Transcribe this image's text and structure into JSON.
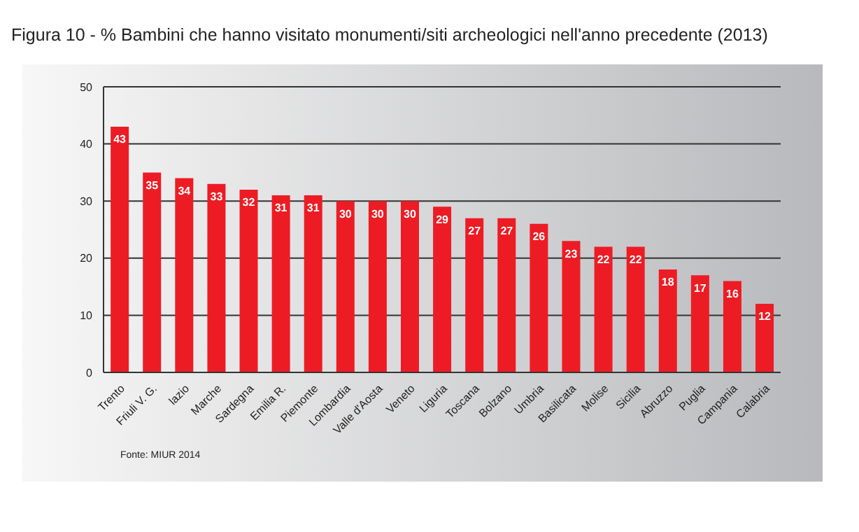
{
  "chart_data": {
    "type": "bar",
    "title": "Figura 10 - % Bambini che hanno visitato monumenti/siti archeologici nell'anno precedente (2013)",
    "categories": [
      "Trento",
      "Friuli V. G.",
      "lazio",
      "Marche",
      "Sardegna",
      "Emilia R.",
      "Piemonte",
      "Lombardia",
      "Valle d'Aosta",
      "Veneto",
      "Liguria",
      "Toscana",
      "Bolzano",
      "Umbria",
      "Basilicata",
      "Molise",
      "Sicilia",
      "Abruzzo",
      "Puglia",
      "Campania",
      "Calabria"
    ],
    "values": [
      43,
      35,
      34,
      33,
      32,
      31,
      31,
      30,
      30,
      30,
      29,
      27,
      27,
      26,
      23,
      22,
      22,
      18,
      17,
      16,
      12
    ],
    "color": "#ed1c24",
    "ylim": [
      0,
      50
    ],
    "yticks": [
      0,
      10,
      20,
      30,
      40,
      50
    ],
    "grid": "y",
    "data_labels": true,
    "annotations": [
      "Fonte: MIUR 2014"
    ]
  }
}
